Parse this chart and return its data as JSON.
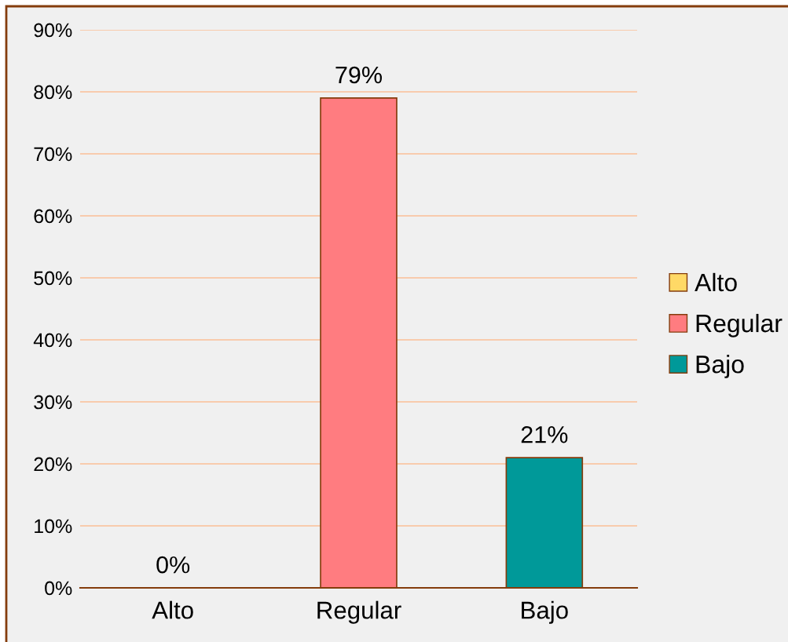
{
  "chart_data": {
    "type": "bar",
    "categories": [
      "Alto",
      "Regular",
      "Bajo"
    ],
    "series": [
      {
        "name": "Alto",
        "color": "#ffd966",
        "values": [
          0,
          null,
          null
        ],
        "value_labels": [
          "0%",
          null,
          null
        ]
      },
      {
        "name": "Regular",
        "color": "#ff7c80",
        "values": [
          null,
          79,
          null
        ],
        "value_labels": [
          null,
          "79%",
          null
        ]
      },
      {
        "name": "Bajo",
        "color": "#009999",
        "values": [
          null,
          null,
          21
        ],
        "value_labels": [
          null,
          null,
          "21%"
        ]
      }
    ],
    "ylim": [
      0,
      90
    ],
    "yticks": [
      {
        "value": 0,
        "label": "0%"
      },
      {
        "value": 10,
        "label": "10%"
      },
      {
        "value": 20,
        "label": "20%"
      },
      {
        "value": 30,
        "label": "30%"
      },
      {
        "value": 40,
        "label": "40%"
      },
      {
        "value": 50,
        "label": "50%"
      },
      {
        "value": 60,
        "label": "60%"
      },
      {
        "value": 70,
        "label": "70%"
      },
      {
        "value": 80,
        "label": "80%"
      },
      {
        "value": 90,
        "label": "90%"
      }
    ],
    "grid": "y",
    "legend": "right"
  }
}
